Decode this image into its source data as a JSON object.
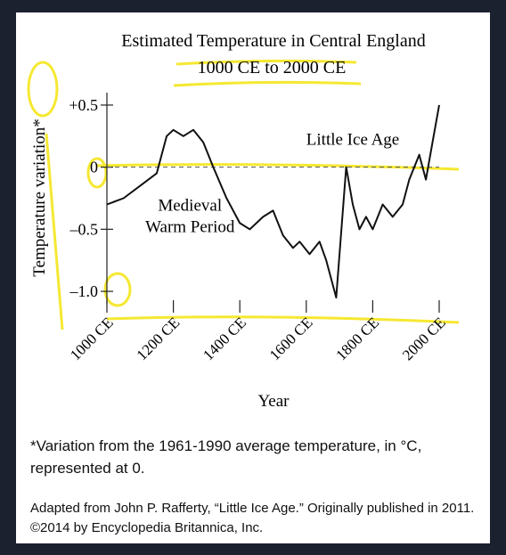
{
  "chart_data": {
    "type": "line",
    "title": [
      "Estimated Temperature in Central England",
      "1000 CE to 2000 CE"
    ],
    "x_label": "Year",
    "y_label": "Temperature variation*",
    "x": [
      1000,
      1050,
      1100,
      1150,
      1180,
      1200,
      1230,
      1260,
      1290,
      1320,
      1360,
      1400,
      1430,
      1470,
      1500,
      1530,
      1560,
      1580,
      1610,
      1640,
      1660,
      1690,
      1720,
      1740,
      1760,
      1780,
      1800,
      1830,
      1860,
      1890,
      1910,
      1940,
      1960,
      1980,
      2000
    ],
    "values": [
      -0.3,
      -0.25,
      -0.15,
      -0.05,
      0.25,
      0.3,
      0.25,
      0.3,
      0.2,
      0,
      -0.25,
      -0.45,
      -0.5,
      -0.4,
      -0.35,
      -0.55,
      -0.65,
      -0.6,
      -0.7,
      -0.6,
      -0.75,
      -1.05,
      0,
      -0.3,
      -0.5,
      -0.4,
      -0.5,
      -0.3,
      -0.4,
      -0.3,
      -0.1,
      0.1,
      -0.1,
      0.2,
      0.5
    ],
    "color": "#111111",
    "xlim": [
      1000,
      2000
    ],
    "xticks": [
      {
        "value": 1000,
        "label": "1000 CE"
      },
      {
        "value": 1200,
        "label": "1200 CE"
      },
      {
        "value": 1400,
        "label": "1400 CE"
      },
      {
        "value": 1600,
        "label": "1600 CE"
      },
      {
        "value": 1800,
        "label": "1800 CE"
      },
      {
        "value": 2000,
        "label": "2000 CE"
      }
    ],
    "ylim": [
      -1.1,
      0.6
    ],
    "yticks": [
      {
        "value": 0.5,
        "label": "+0.5"
      },
      0,
      {
        "value": -0.5,
        "label": "–0.5"
      },
      {
        "value": -1.0,
        "label": "–1.0"
      }
    ],
    "reference_line": 0,
    "annotations": [
      {
        "text": [
          "Little Ice Age"
        ],
        "x": 1740,
        "y": 0.18
      },
      {
        "text": [
          "Medieval",
          "Warm Period"
        ],
        "x": 1250,
        "y": -0.35
      }
    ],
    "footnote": "*Variation from the 1961-1990 average temperature, in °C, represented at 0.",
    "source": "Adapted from John P. Rafferty, “Little Ice Age.” Originally published in 2011. ©2014 by Encyclopedia Britannica, Inc."
  }
}
